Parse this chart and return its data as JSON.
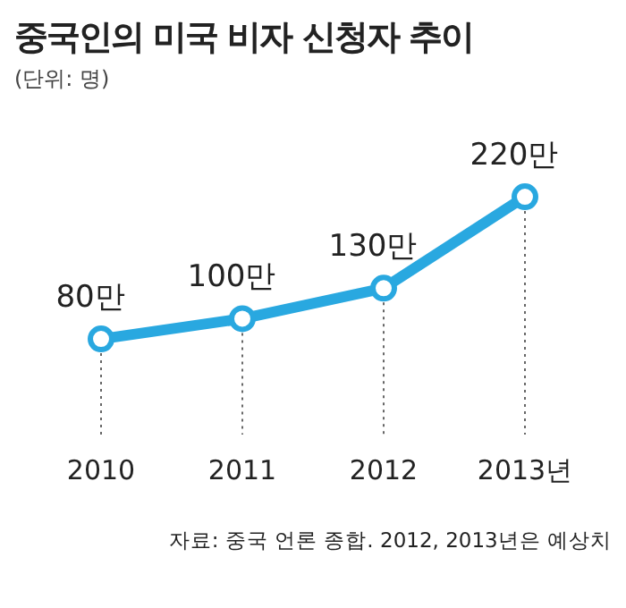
{
  "chart_data": {
    "type": "line",
    "title": "중국인의 미국 비자 신청자 추이",
    "subtitle": "(단위: 명)",
    "annotations": [
      "자료: 중국 언론 종합. 2012, 2013년은 예상치"
    ],
    "categories": [
      "2010",
      "2011",
      "2012",
      "2013년"
    ],
    "series": [
      {
        "color": "#29a8e0",
        "values": [
          80,
          100,
          130,
          220
        ],
        "value_labels": [
          "80만",
          "100만",
          "130만",
          "220만"
        ]
      }
    ],
    "marker": "circle",
    "grid": "x",
    "legend": false
  }
}
